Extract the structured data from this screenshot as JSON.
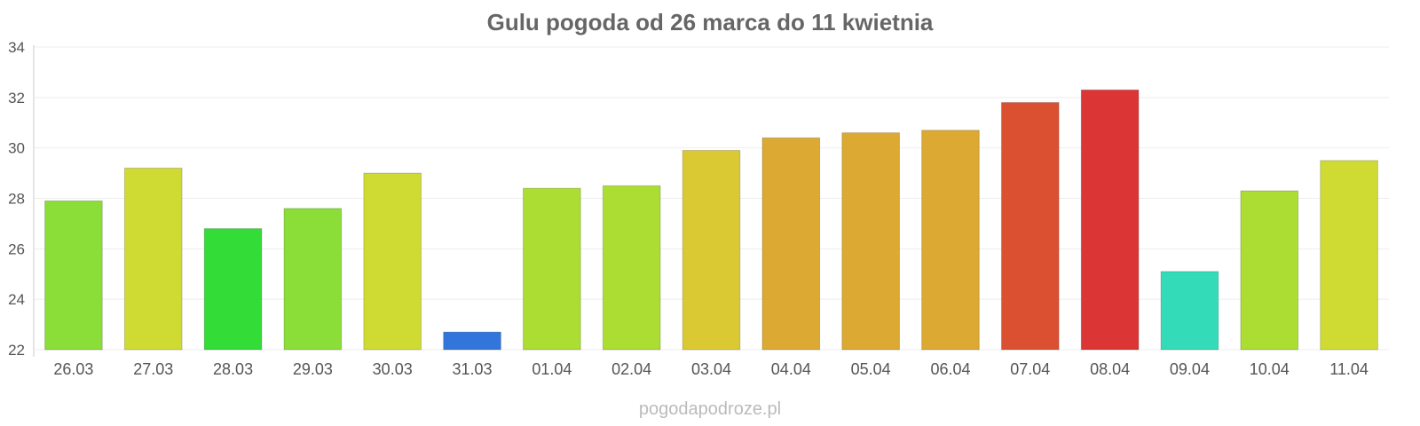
{
  "chart_data": {
    "type": "bar",
    "title": "Gulu pogoda od 26 marca do 11 kwietnia",
    "xlabel": "",
    "ylabel": "",
    "ylim": [
      22,
      34
    ],
    "yticks": [
      22,
      24,
      26,
      28,
      30,
      32,
      34
    ],
    "grid": true,
    "legend": "none",
    "categories": [
      "26.03",
      "27.03",
      "28.03",
      "29.03",
      "30.03",
      "31.03",
      "01.04",
      "02.04",
      "03.04",
      "04.04",
      "05.04",
      "06.04",
      "07.04",
      "08.04",
      "09.04",
      "10.04",
      "11.04"
    ],
    "values": [
      27.9,
      29.2,
      26.8,
      27.6,
      29.0,
      22.7,
      28.4,
      28.5,
      29.9,
      30.4,
      30.6,
      30.7,
      31.8,
      32.3,
      25.1,
      28.3,
      29.5
    ],
    "colors": [
      "#8bdd37",
      "#cfdb33",
      "#33dc37",
      "#8bdd37",
      "#cfdb33",
      "#3276dc",
      "#abdd33",
      "#abdd33",
      "#dbc933",
      "#dca933",
      "#dca933",
      "#dca933",
      "#dc5032",
      "#dc3535",
      "#33dbb8",
      "#abdd33",
      "#cfdb33"
    ]
  },
  "watermark": "pogodapodroze.pl"
}
